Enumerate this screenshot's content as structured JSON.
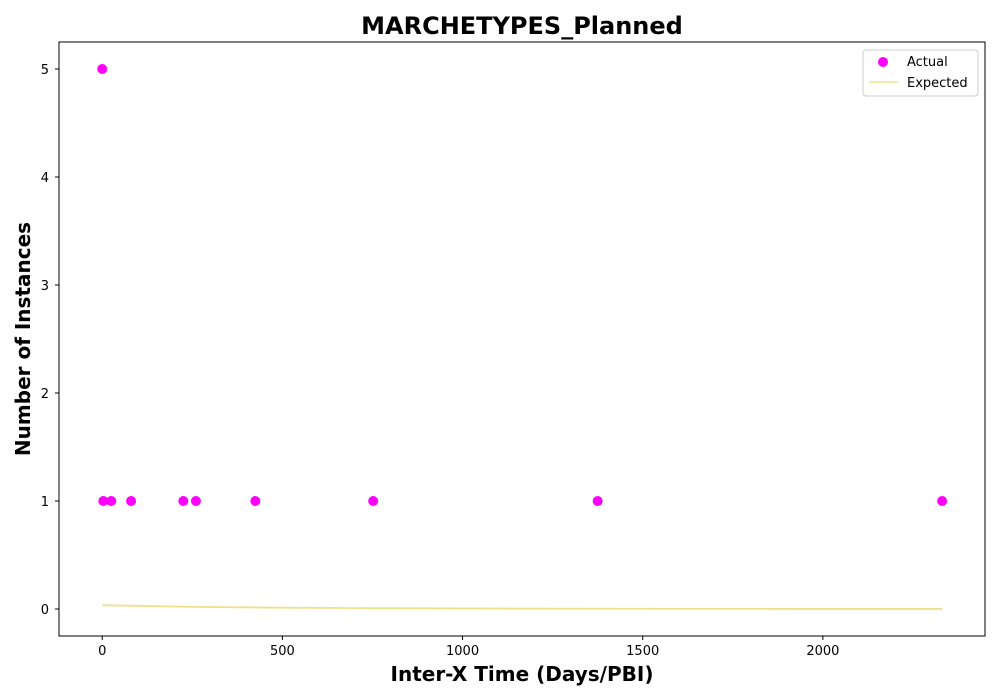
{
  "chart_data": {
    "type": "scatter",
    "title": "MARCHETYPES_Planned",
    "xlabel": "Inter-X Time (Days/PBI)",
    "ylabel": "Number of Instances",
    "xlim": [
      -120,
      2450
    ],
    "ylim": [
      -0.25,
      5.25
    ],
    "xticks": [
      0,
      500,
      1000,
      1500,
      2000
    ],
    "yticks": [
      0,
      1,
      2,
      3,
      4,
      5
    ],
    "grid": false,
    "legend_position": "top-right",
    "series": [
      {
        "name": "Actual",
        "kind": "scatter",
        "color": "#ff00ff",
        "x": [
          0,
          3,
          25,
          80,
          225,
          260,
          425,
          752,
          1375,
          2331
        ],
        "y": [
          5,
          1,
          1,
          1,
          1,
          1,
          1,
          1,
          1,
          1
        ]
      },
      {
        "name": "Expected",
        "kind": "line",
        "color": "#f0e08a",
        "x": [
          0,
          250,
          500,
          750,
          1000,
          1250,
          1500,
          1750,
          2000,
          2331
        ],
        "y": [
          0.035,
          0.02,
          0.012,
          0.008,
          0.005,
          0.003,
          0.002,
          0.001,
          0.0008,
          0.0005
        ]
      }
    ]
  }
}
